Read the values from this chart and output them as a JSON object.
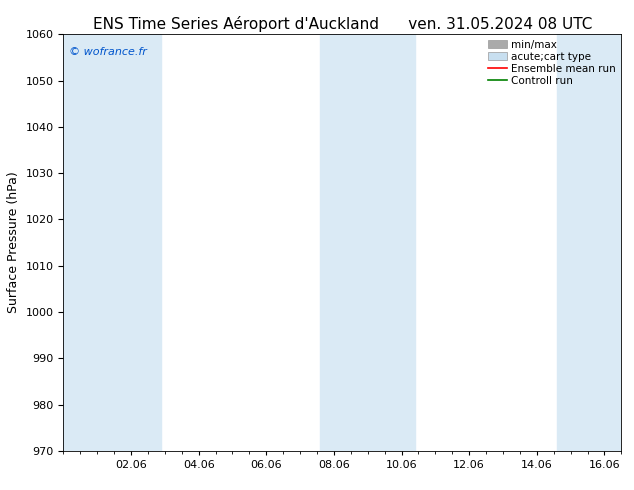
{
  "title_left": "ENS Time Series Aéroport d'Auckland",
  "title_right": "ven. 31.05.2024 08 UTC",
  "ylabel": "Surface Pressure (hPa)",
  "ylim": [
    970,
    1060
  ],
  "yticks": [
    970,
    980,
    990,
    1000,
    1010,
    1020,
    1030,
    1040,
    1050,
    1060
  ],
  "xlim": [
    0.0,
    16.5
  ],
  "xtick_labels": [
    "02.06",
    "04.06",
    "06.06",
    "08.06",
    "10.06",
    "12.06",
    "14.06",
    "16.06"
  ],
  "xtick_positions": [
    2,
    4,
    6,
    8,
    10,
    12,
    14,
    16
  ],
  "shaded_bands": [
    {
      "x_start": 0.0,
      "x_end": 2.9
    },
    {
      "x_start": 7.6,
      "x_end": 10.4
    },
    {
      "x_start": 14.6,
      "x_end": 16.5
    }
  ],
  "band_color": "#daeaf5",
  "background_color": "#ffffff",
  "watermark": "© wofrance.fr",
  "watermark_color": "#0055cc",
  "legend_items": [
    {
      "label": "min/max",
      "color": "#aaaaaa",
      "type": "fill"
    },
    {
      "label": "acute;cart type",
      "color": "#c8dff0",
      "type": "fill"
    },
    {
      "label": "Ensemble mean run",
      "color": "#ff0000",
      "type": "line"
    },
    {
      "label": "Controll run",
      "color": "#008000",
      "type": "line"
    }
  ],
  "title_fontsize": 11,
  "axis_label_fontsize": 9,
  "tick_fontsize": 8,
  "legend_fontsize": 7.5,
  "watermark_fontsize": 8
}
